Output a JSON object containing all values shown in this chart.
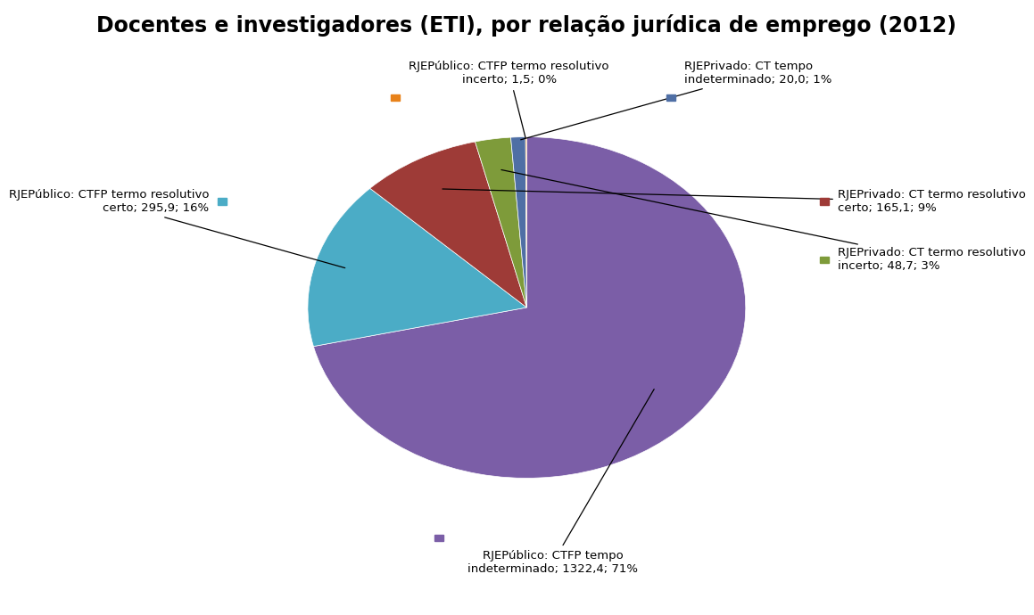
{
  "title": "Docentes e investigadores (ETI), por relação jurídica de emprego (2012)",
  "slices": [
    {
      "label": "RJEPúblico: CTFP tempo\nindeterminado; 1322,4; 71%",
      "value": 1322.4,
      "color": "#7B5EA7"
    },
    {
      "label": "RJEPúblico: CTFP termo resolutivo\ncerto; 295,9; 16%",
      "value": 295.9,
      "color": "#4BACC6"
    },
    {
      "label": "RJEPrivado: CT termo resolutivo\ncerto; 165,1; 9%",
      "value": 165.1,
      "color": "#9E3B37"
    },
    {
      "label": "RJEPrivado: CT termo resolutivo\nincerto; 48,7; 3%",
      "value": 48.7,
      "color": "#7E9B3A"
    },
    {
      "label": "RJEPrivado: CT tempo\nindeterminado; 20,0; 1%",
      "value": 20.0,
      "color": "#4F6FA5"
    },
    {
      "label": "RJEPúblico: CTFP termo resolutivo\nincerto; 1,5; 0%",
      "value": 1.5,
      "color": "#E8821A"
    }
  ],
  "background_color": "#FFFFFF",
  "title_fontsize": 17,
  "annot_fontsize": 9.5
}
